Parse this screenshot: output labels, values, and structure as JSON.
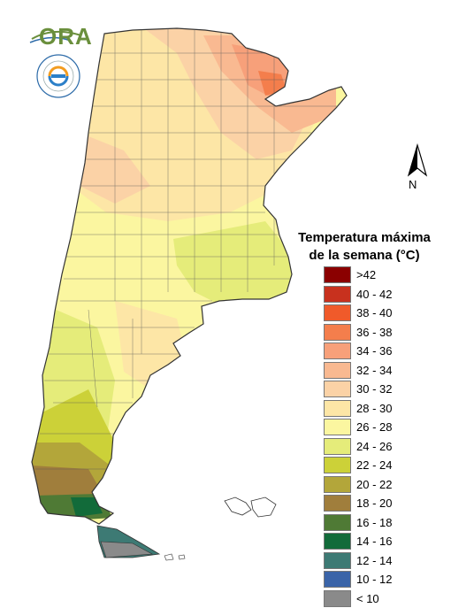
{
  "logo": {
    "text": "ORA",
    "institution_ring_text": "SERVICIO METEOROLOGICO NACIONAL · ARGENTINA"
  },
  "north_arrow": {
    "label": "N"
  },
  "legend": {
    "title_line1": "Temperatura máxima",
    "title_line2": "de la semana (°C)",
    "classes": [
      {
        "label": ">42",
        "color": "#8b0000"
      },
      {
        "label": "40 - 42",
        "color": "#c8311e"
      },
      {
        "label": "38 - 40",
        "color": "#f05a2a"
      },
      {
        "label": "36 - 38",
        "color": "#f47e4c"
      },
      {
        "label": "34 - 36",
        "color": "#f7a07a"
      },
      {
        "label": "32 - 34",
        "color": "#f9b991"
      },
      {
        "label": "30 - 32",
        "color": "#fbd2a6"
      },
      {
        "label": "28 - 30",
        "color": "#fde6a6"
      },
      {
        "label": "26 - 28",
        "color": "#fbf6a0"
      },
      {
        "label": "24 - 26",
        "color": "#e5ec7a"
      },
      {
        "label": "22 - 24",
        "color": "#ccd138"
      },
      {
        "label": "20 - 22",
        "color": "#b3a63a"
      },
      {
        "label": "18 - 20",
        "color": "#a07e3c"
      },
      {
        "label": "16 - 18",
        "color": "#4f7a35"
      },
      {
        "label": "14 - 16",
        "color": "#126b3a"
      },
      {
        "label": "12 - 14",
        "color": "#3d7a74"
      },
      {
        "label": "10 - 12",
        "color": "#3a64a8"
      },
      {
        "label": "< 10",
        "color": "#8a8a8a"
      }
    ]
  }
}
